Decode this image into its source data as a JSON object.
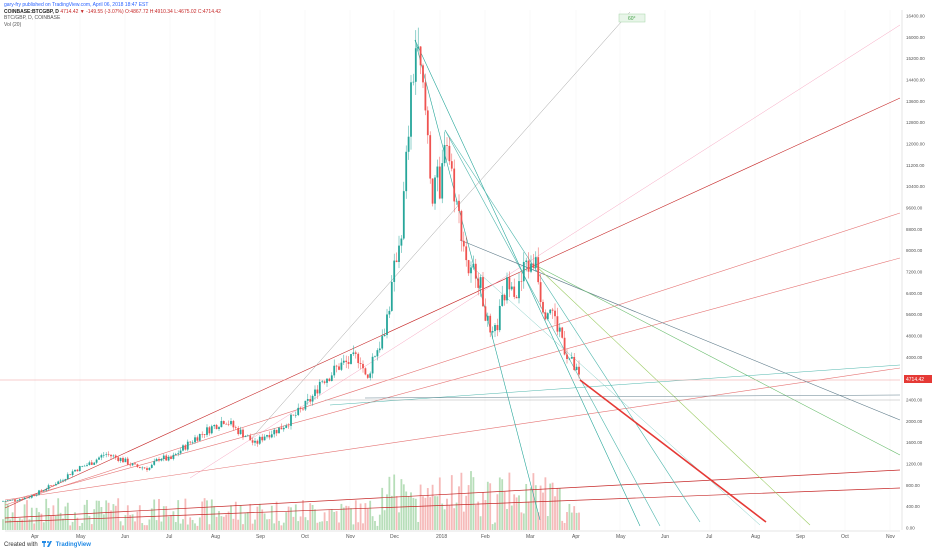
{
  "header": {
    "published": "gary-fry published on TradingView.com, April 06, 2018 18:47 EST",
    "symbol": "COINBASE:BTCGBP, D",
    "quote": "4714.42 ▼ -149.55 (-3.07%) O:4867.72 H:4910.34 L:4675.02 C:4714.42",
    "line2": "BTC/GBP, D, COINBASE",
    "line3": "Vol (20)"
  },
  "footer": {
    "created_with": "Created with",
    "brand": "TradingView"
  },
  "annotation": "60°",
  "price_label": "4714.42",
  "colors": {
    "up": "#26a69a",
    "down": "#ef5350",
    "red_line": "#e53935",
    "accent": "#1e88e5"
  },
  "chart_data": {
    "type": "candlestick",
    "x_labels": [
      "Apr",
      "May",
      "Jun",
      "Jul",
      "Aug",
      "Sep",
      "Oct",
      "Nov",
      "Dec",
      "2018",
      "Feb",
      "Mar",
      "Apr",
      "May",
      "Jun",
      "Jul",
      "Aug",
      "Sep",
      "Oct",
      "Nov"
    ],
    "y_ticks": [
      "16400.00",
      "16000.00",
      "15200.00",
      "14400.00",
      "13600.00",
      "12800.00",
      "12000.00",
      "11200.00",
      "10400.00",
      "9600.00",
      "8800.00",
      "8000.00",
      "7200.00",
      "6400.00",
      "5600.00",
      "4800.00",
      "4000.00",
      "3200.00",
      "2400.00",
      "2000.00",
      "1600.00",
      "1200.00",
      "800.00",
      "400.00",
      "0.00"
    ],
    "y_range": [
      0,
      16400
    ],
    "close_path": [
      [
        0,
        900
      ],
      [
        15,
        950
      ],
      [
        30,
        1050
      ],
      [
        45,
        1300
      ],
      [
        60,
        1550
      ],
      [
        75,
        1900
      ],
      [
        90,
        2100
      ],
      [
        105,
        2400
      ],
      [
        120,
        2250
      ],
      [
        135,
        2000
      ],
      [
        150,
        1950
      ],
      [
        160,
        2300
      ],
      [
        170,
        2200
      ],
      [
        180,
        2500
      ],
      [
        195,
        2900
      ],
      [
        205,
        3100
      ],
      [
        215,
        3300
      ],
      [
        225,
        3500
      ],
      [
        235,
        3200
      ],
      [
        245,
        3000
      ],
      [
        255,
        2700
      ],
      [
        265,
        3000
      ],
      [
        280,
        3200
      ],
      [
        295,
        3600
      ],
      [
        305,
        3900
      ],
      [
        315,
        4300
      ],
      [
        320,
        4700
      ],
      [
        330,
        4900
      ],
      [
        340,
        5200
      ],
      [
        350,
        5300
      ],
      [
        360,
        5500
      ],
      [
        367,
        4600
      ],
      [
        372,
        5400
      ],
      [
        382,
        6000
      ],
      [
        390,
        7200
      ],
      [
        396,
        8600
      ],
      [
        402,
        9600
      ],
      [
        407,
        12000
      ],
      [
        412,
        14000
      ],
      [
        416,
        15300
      ],
      [
        420,
        14400
      ],
      [
        424,
        13600
      ],
      [
        428,
        12400
      ],
      [
        432,
        10500
      ],
      [
        436,
        11400
      ],
      [
        440,
        10200
      ],
      [
        445,
        12800
      ],
      [
        449,
        11800
      ],
      [
        453,
        11000
      ],
      [
        458,
        10000
      ],
      [
        462,
        9400
      ],
      [
        466,
        8600
      ],
      [
        470,
        8000
      ],
      [
        476,
        8300
      ],
      [
        481,
        7600
      ],
      [
        486,
        6800
      ],
      [
        491,
        5900
      ],
      [
        496,
        6300
      ],
      [
        501,
        7000
      ],
      [
        506,
        7600
      ],
      [
        511,
        8100
      ],
      [
        516,
        7400
      ],
      [
        521,
        7800
      ],
      [
        526,
        8500
      ],
      [
        531,
        8200
      ],
      [
        536,
        8700
      ],
      [
        541,
        7300
      ],
      [
        546,
        6900
      ],
      [
        551,
        7100
      ],
      [
        556,
        6500
      ],
      [
        561,
        6200
      ],
      [
        566,
        5600
      ],
      [
        571,
        5300
      ],
      [
        576,
        5000
      ],
      [
        580,
        4714
      ]
    ],
    "last_close": 4714.42
  }
}
